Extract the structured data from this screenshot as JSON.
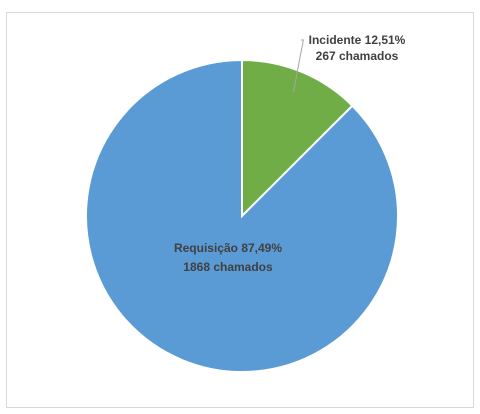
{
  "chart_data": {
    "type": "pie",
    "start_angle_deg": 0,
    "direction": "clockwise",
    "slices": [
      {
        "name": "Incidente",
        "value": 267,
        "percent": 12.51,
        "color": "#70ad47",
        "label_line1": "Incidente 12,51%",
        "label_line2": "267 chamados"
      },
      {
        "name": "Requisição",
        "value": 1868,
        "percent": 87.49,
        "color": "#5b9bd5",
        "label_line1": "Requisição 87,49%",
        "label_line2": "1868 chamados"
      }
    ],
    "label_leader_color": "#a6a6a6",
    "slice_border_color": "#ffffff"
  }
}
